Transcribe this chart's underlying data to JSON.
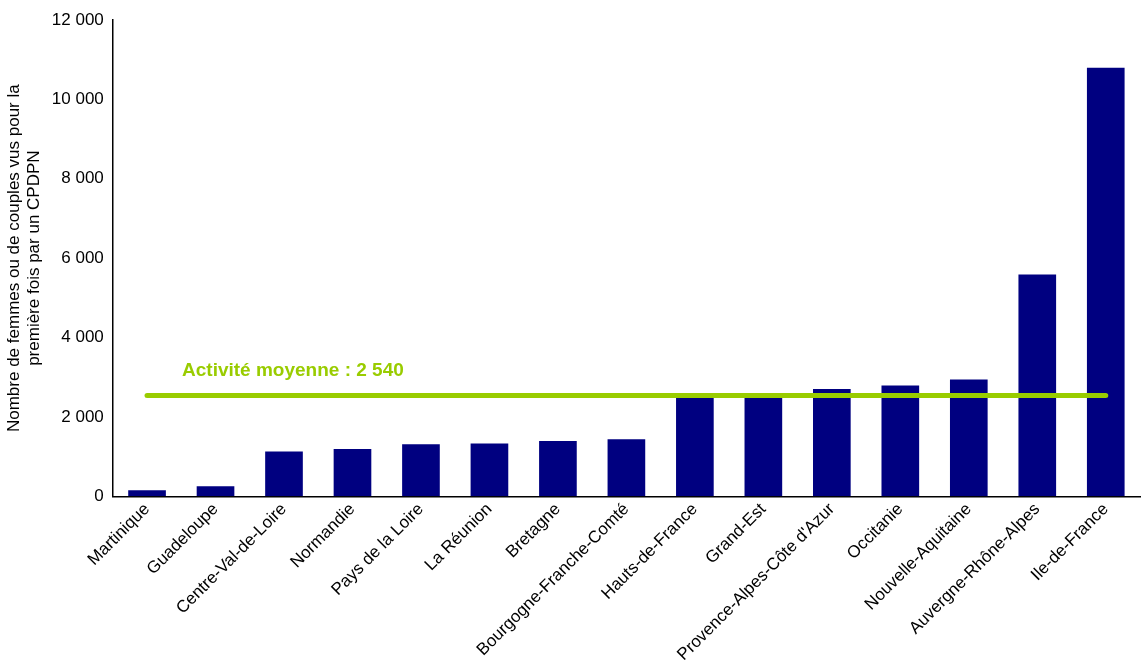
{
  "chart_data": {
    "type": "bar",
    "ylabel": "Nombre de femmes ou de couples vus pour la première fois par un CPDPN",
    "categories": [
      "Martinique",
      "Guadeloupe",
      "Centre-Val-de-Loire",
      "Normandie",
      "Pays de la Loire",
      "La Réunion",
      "Bretagne",
      "Bourgogne-Franche-Comté",
      "Hauts-de-France",
      "Grand-Est",
      "Provence-Alpes-Côte d'Azur",
      "Occitanie",
      "Nouvelle-Aquitaine",
      "Auvergne-Rhône-Alpes",
      "Ile-de-France"
    ],
    "values": [
      150,
      250,
      1130,
      1190,
      1310,
      1330,
      1390,
      1440,
      2550,
      2550,
      2700,
      2790,
      2940,
      5590,
      10800
    ],
    "color": "#000080",
    "ylim": [
      0,
      12000
    ],
    "yticks": [
      {
        "value": 0,
        "label": "0"
      },
      {
        "value": 2000,
        "label": "2 000"
      },
      {
        "value": 4000,
        "label": "4 000"
      },
      {
        "value": 6000,
        "label": "6 000"
      },
      {
        "value": 8000,
        "label": "8 000"
      },
      {
        "value": 10000,
        "label": "10 000"
      },
      {
        "value": 12000,
        "label": "12 000"
      }
    ],
    "grid": false,
    "legend": false,
    "ref_lines": [
      {
        "axis": "y",
        "value": 2540,
        "label": "Activité moyenne : 2 540",
        "color": "#99cc00"
      }
    ]
  }
}
